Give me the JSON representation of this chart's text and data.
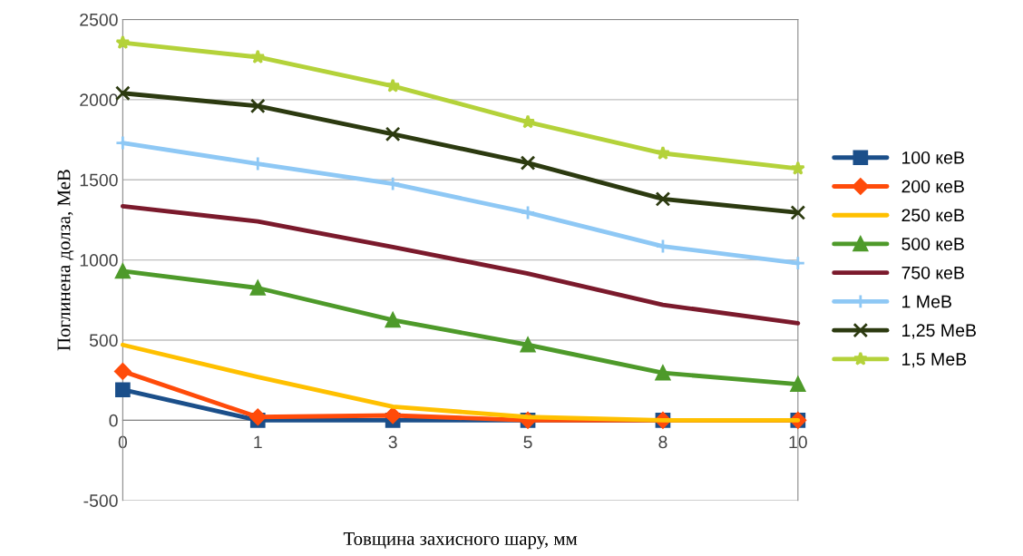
{
  "chart_data": {
    "type": "line",
    "xlabel": "Товщина захисного шару, мм",
    "ylabel": "Поглинена долза, МеВ",
    "categories": [
      "0",
      "1",
      "3",
      "5",
      "8",
      "10"
    ],
    "ylim": [
      -500,
      2500
    ],
    "yticks": [
      -500,
      0,
      500,
      1000,
      1500,
      2000,
      2500
    ],
    "grid": "y",
    "legend": "right",
    "series": [
      {
        "name": "100 кеВ",
        "color": "#1b4f8a",
        "marker": "square",
        "values": [
          190,
          0,
          0,
          0,
          0,
          0
        ]
      },
      {
        "name": "200 кеВ",
        "color": "#ff4b0a",
        "marker": "diamond",
        "values": [
          305,
          20,
          30,
          0,
          0,
          0
        ]
      },
      {
        "name": "250 кеВ",
        "color": "#ffc000",
        "marker": "none",
        "values": [
          470,
          270,
          85,
          20,
          0,
          0
        ]
      },
      {
        "name": "500 кеВ",
        "color": "#4e9a2a",
        "marker": "triangle",
        "values": [
          930,
          825,
          625,
          470,
          295,
          225
        ]
      },
      {
        "name": "750 кеВ",
        "color": "#7b1a2c",
        "marker": "none",
        "values": [
          1335,
          1240,
          1080,
          915,
          720,
          605
        ]
      },
      {
        "name": "1 МеВ",
        "color": "#8ec8f5",
        "marker": "cross",
        "values": [
          1730,
          1600,
          1475,
          1295,
          1085,
          980
        ]
      },
      {
        "name": "1,25 МеВ",
        "color": "#2c3a10",
        "marker": "x",
        "values": [
          2040,
          1960,
          1785,
          1605,
          1380,
          1295
        ]
      },
      {
        "name": "1,5 МеВ",
        "color": "#b4d23a",
        "marker": "star",
        "values": [
          2355,
          2265,
          2085,
          1860,
          1665,
          1570
        ]
      }
    ]
  }
}
